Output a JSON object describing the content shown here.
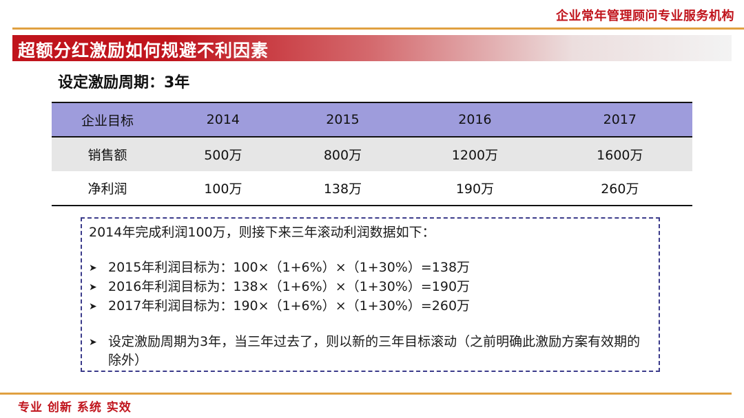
{
  "header": {
    "org_name": "企业常年管理顾问专业服务机构"
  },
  "title": "超额分红激励如何规避不利因素",
  "subtitle": "设定激励周期：3年",
  "table": {
    "columns": [
      "企业目标",
      "2014",
      "2015",
      "2016",
      "2017"
    ],
    "rows": [
      [
        "销售额",
        "500万",
        "800万",
        "1200万",
        "1600万"
      ],
      [
        "净利润",
        "100万",
        "138万",
        "190万",
        "260万"
      ]
    ]
  },
  "notes": {
    "intro": "2014年完成利润100万，则接下来三年滚动利润数据如下：",
    "bullets": [
      "2015年利润目标为：100×（1+6%）×（1+30%）=138万",
      "2016年利润目标为：138×（1+6%）×（1+30%）=190万",
      "2017年利润目标为：190×（1+6%）×（1+30%）=260万"
    ],
    "final": "设定激励周期为3年，当三年过去了，则以新的三年目标滚动（之前明确此激励方案有效期的除外）",
    "bullet_icon": "arrow-bullet-icon"
  },
  "footer": {
    "slogan": "专业  创新  系统  实效"
  }
}
